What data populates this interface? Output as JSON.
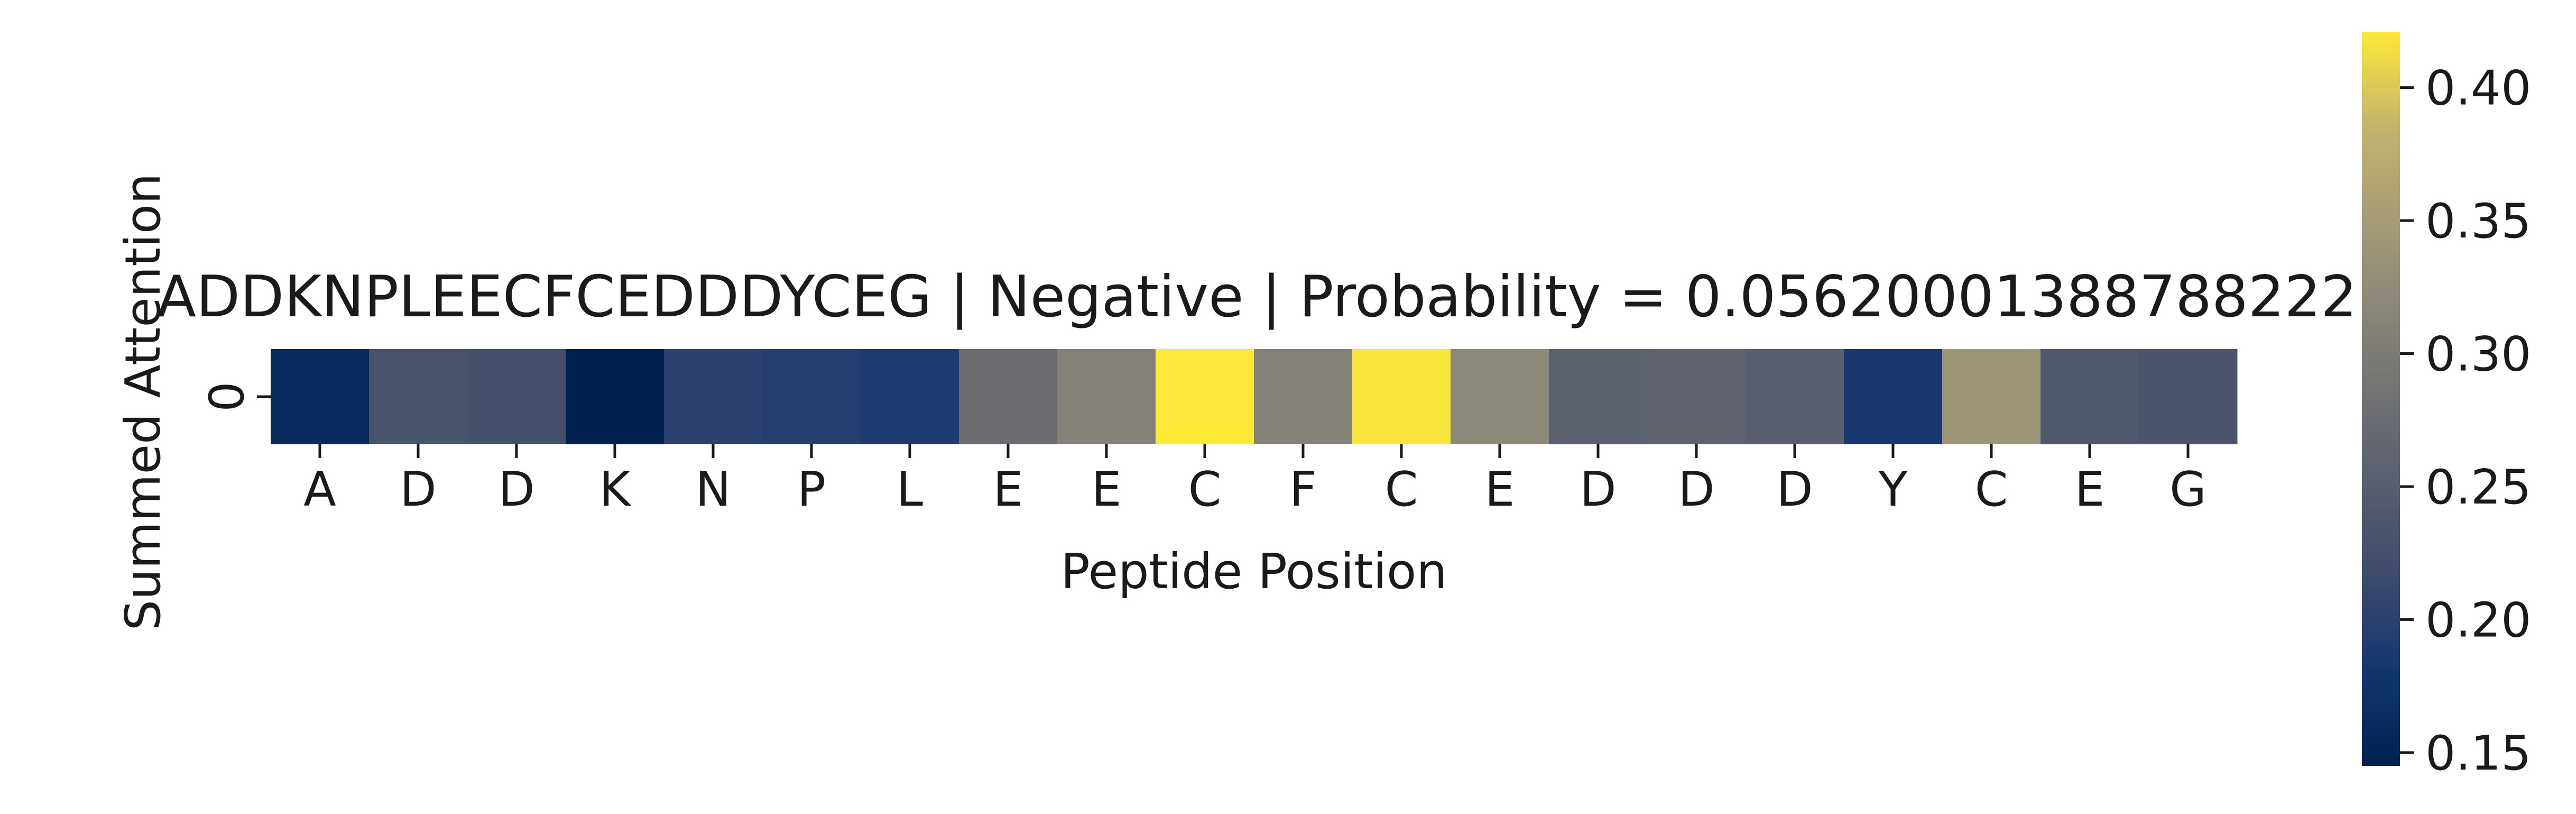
{
  "chart_data": {
    "type": "heatmap",
    "title": "ADDKNPLEECFCEDDDYCEG | Negative | Probability = 0.05620001388788222",
    "xlabel": "Peptide Position",
    "ylabel": "Summed Attention",
    "row_labels": [
      "0"
    ],
    "categories": [
      "A",
      "D",
      "D",
      "K",
      "N",
      "P",
      "L",
      "E",
      "E",
      "C",
      "F",
      "C",
      "E",
      "D",
      "D",
      "D",
      "Y",
      "C",
      "E",
      "G"
    ],
    "values": [
      0.16,
      0.23,
      0.225,
      0.145,
      0.2,
      0.195,
      0.19,
      0.275,
      0.31,
      0.421,
      0.31,
      0.418,
      0.32,
      0.255,
      0.258,
      0.25,
      0.185,
      0.34,
      0.24,
      0.235
    ],
    "colorbar": {
      "range": [
        0.145,
        0.421
      ],
      "ticks": [
        "0.15",
        "0.20",
        "0.25",
        "0.30",
        "0.35",
        "0.40"
      ],
      "colormap": "cividis",
      "low_color": "#00224e",
      "high_color": "#fee838"
    },
    "grid": false,
    "legend": "colorbar-right"
  }
}
